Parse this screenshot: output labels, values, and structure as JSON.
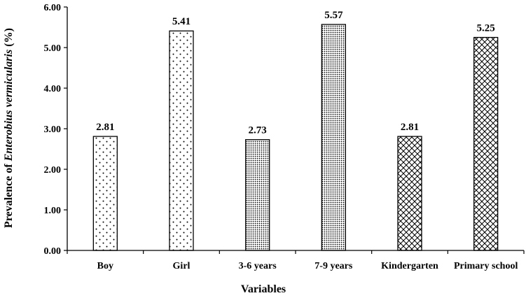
{
  "chart_data": {
    "type": "bar",
    "title": "",
    "xlabel": "Variables",
    "ylabel_prefix": "Prevalence of ",
    "ylabel_italic": "Enterobius vermicularis",
    "ylabel_suffix": " (%)",
    "ylim": [
      0,
      6
    ],
    "yticks": [
      "0.00",
      "1.00",
      "2.00",
      "3.00",
      "4.00",
      "5.00",
      "6.00"
    ],
    "categories": [
      "Boy",
      "Girl",
      "3-6 years",
      "7-9 years",
      "Kindergarten",
      "Primary school"
    ],
    "values": [
      2.81,
      5.41,
      2.73,
      5.57,
      2.81,
      5.25
    ],
    "value_labels": [
      "2.81",
      "5.41",
      "2.73",
      "5.57",
      "2.81",
      "5.25"
    ],
    "patterns": [
      "sparse-dots",
      "sparse-dots",
      "dense-dots",
      "dense-dots",
      "crosshatch",
      "crosshatch"
    ],
    "grid": false,
    "legend": "none"
  }
}
